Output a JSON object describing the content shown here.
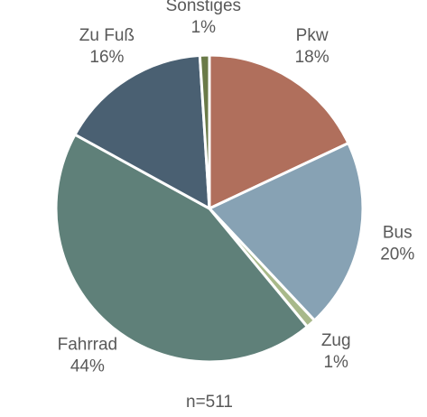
{
  "chart_data": {
    "type": "pie",
    "categories": [
      "Pkw",
      "Bus",
      "Zug",
      "Fahrrad",
      "Zu Fuß",
      "Sonstiges"
    ],
    "values": [
      18,
      20,
      1,
      44,
      16,
      1
    ],
    "value_labels": [
      "18%",
      "20%",
      "1%",
      "44%",
      "16%",
      "1%"
    ],
    "colors": [
      "#b06f5c",
      "#87a2b4",
      "#a8b98a",
      "#5f8079",
      "#4a6072",
      "#6a7a48"
    ],
    "annotation": "n=511"
  }
}
